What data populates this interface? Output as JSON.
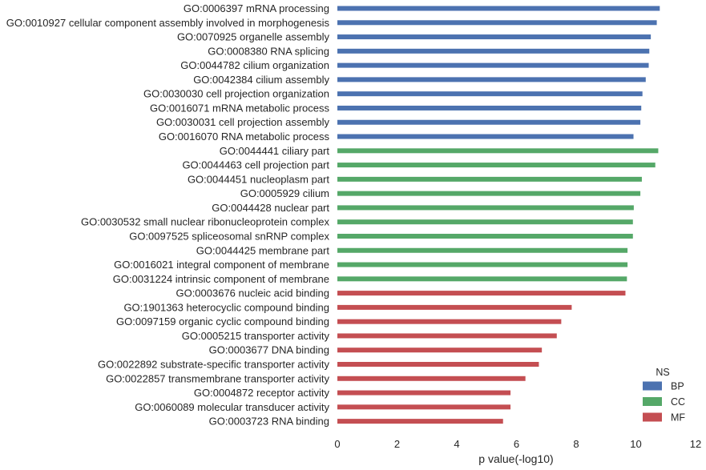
{
  "chart_data": {
    "type": "bar",
    "orientation": "horizontal",
    "xlabel": "p value(-log10)",
    "xlim": [
      0,
      12
    ],
    "xticks": [
      "0",
      "2",
      "4",
      "6",
      "8",
      "10",
      "12"
    ],
    "grid": false,
    "legend": {
      "title": "NS",
      "placement": "bottom-right",
      "entries": [
        {
          "name": "BP",
          "color": "#4c72b0"
        },
        {
          "name": "CC",
          "color": "#55a868"
        },
        {
          "name": "MF",
          "color": "#c44e52"
        }
      ]
    },
    "bars": [
      {
        "label": "GO:0006397 mRNA processing",
        "ns": "BP",
        "value": 10.8
      },
      {
        "label": "GO:0010927 cellular component assembly involved in morphogenesis",
        "ns": "BP",
        "value": 10.7
      },
      {
        "label": "GO:0070925 organelle assembly",
        "ns": "BP",
        "value": 10.5
      },
      {
        "label": "GO:0008380 RNA splicing",
        "ns": "BP",
        "value": 10.45
      },
      {
        "label": "GO:0044782 cilium organization",
        "ns": "BP",
        "value": 10.43
      },
      {
        "label": "GO:0042384 cilium assembly",
        "ns": "BP",
        "value": 10.33
      },
      {
        "label": "GO:0030030 cell projection organization",
        "ns": "BP",
        "value": 10.22
      },
      {
        "label": "GO:0016071 mRNA metabolic process",
        "ns": "BP",
        "value": 10.18
      },
      {
        "label": "GO:0030031 cell projection assembly",
        "ns": "BP",
        "value": 10.15
      },
      {
        "label": "GO:0016070 RNA metabolic process",
        "ns": "BP",
        "value": 9.92
      },
      {
        "label": "GO:0044441 ciliary part",
        "ns": "CC",
        "value": 10.75
      },
      {
        "label": "GO:0044463 cell projection part",
        "ns": "CC",
        "value": 10.65
      },
      {
        "label": "GO:0044451 nucleoplasm part",
        "ns": "CC",
        "value": 10.2
      },
      {
        "label": "GO:0005929 cilium",
        "ns": "CC",
        "value": 10.15
      },
      {
        "label": "GO:0044428 nuclear part",
        "ns": "CC",
        "value": 9.93
      },
      {
        "label": "GO:0030532 small nuclear ribonucleoprotein complex",
        "ns": "CC",
        "value": 9.9
      },
      {
        "label": "GO:0097525 spliceosomal snRNP complex",
        "ns": "CC",
        "value": 9.9
      },
      {
        "label": "GO:0044425 membrane part",
        "ns": "CC",
        "value": 9.72
      },
      {
        "label": "GO:0016021 integral component of membrane",
        "ns": "CC",
        "value": 9.72
      },
      {
        "label": "GO:0031224 intrinsic component of membrane",
        "ns": "CC",
        "value": 9.7
      },
      {
        "label": "GO:0003676 nucleic acid binding",
        "ns": "MF",
        "value": 9.65
      },
      {
        "label": "GO:1901363 heterocyclic compound binding",
        "ns": "MF",
        "value": 7.85
      },
      {
        "label": "GO:0097159 organic cyclic compound binding",
        "ns": "MF",
        "value": 7.5
      },
      {
        "label": "GO:0005215 transporter activity",
        "ns": "MF",
        "value": 7.35
      },
      {
        "label": "GO:0003677 DNA binding",
        "ns": "MF",
        "value": 6.85
      },
      {
        "label": "GO:0022892 substrate-specific transporter activity",
        "ns": "MF",
        "value": 6.75
      },
      {
        "label": "GO:0022857 transmembrane transporter activity",
        "ns": "MF",
        "value": 6.3
      },
      {
        "label": "GO:0004872 receptor activity",
        "ns": "MF",
        "value": 5.8
      },
      {
        "label": "GO:0060089 molecular transducer activity",
        "ns": "MF",
        "value": 5.8
      },
      {
        "label": "GO:0003723 RNA binding",
        "ns": "MF",
        "value": 5.55
      }
    ]
  }
}
